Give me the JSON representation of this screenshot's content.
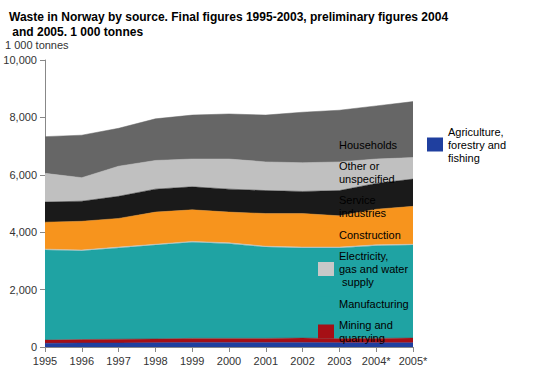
{
  "chart_data": {
    "type": "area",
    "title": "Waste in Norway by source. Final figures 1995-2003, preliminary figures 2004 and 2005. 1 000 tonnes",
    "y_label": "1 000 tonnes",
    "categories": [
      "1995",
      "1996",
      "1997",
      "1998",
      "1999",
      "2000",
      "2001",
      "2002",
      "2003",
      "2004*",
      "2005*"
    ],
    "stacked": true,
    "grid": false,
    "legend": "right",
    "ylim": [
      0,
      10000
    ],
    "yticks": [
      0,
      2000,
      4000,
      6000,
      8000,
      10000
    ],
    "series": [
      {
        "name": "Agriculture, forestry and fishing",
        "color": "#1f3f9f",
        "values": [
          130,
          140,
          140,
          150,
          160,
          160,
          160,
          160,
          150,
          150,
          150
        ]
      },
      {
        "name": "Mining and quarrying",
        "color": "#a50f15",
        "values": [
          110,
          120,
          130,
          130,
          140,
          140,
          140,
          150,
          140,
          150,
          160
        ]
      },
      {
        "name": "Manufacturing",
        "color": "#1fa3a3",
        "values": [
          3140,
          3090,
          3180,
          3270,
          3350,
          3300,
          3180,
          3140,
          3160,
          3230,
          3240
        ]
      },
      {
        "name": "Electricity, gas and water supply",
        "color": "#c8c8c8",
        "values": [
          30,
          30,
          30,
          30,
          30,
          30,
          30,
          30,
          30,
          30,
          30
        ]
      },
      {
        "name": "Construction",
        "color": "#f7941d",
        "values": [
          940,
          1000,
          1000,
          1120,
          1100,
          1070,
          1140,
          1170,
          1090,
          1240,
          1320
        ]
      },
      {
        "name": "Service industries",
        "color": "#1a1a1a",
        "values": [
          700,
          700,
          770,
          800,
          800,
          800,
          800,
          770,
          880,
          900,
          950
        ]
      },
      {
        "name": "Other or unspecified",
        "color": "#c0c0c0",
        "values": [
          1000,
          820,
          1050,
          1000,
          970,
          1050,
          1000,
          1000,
          1000,
          850,
          750
        ]
      },
      {
        "name": "Households",
        "color": "#666666",
        "values": [
          1280,
          1480,
          1320,
          1450,
          1530,
          1570,
          1630,
          1760,
          1800,
          1850,
          1950
        ]
      }
    ]
  }
}
